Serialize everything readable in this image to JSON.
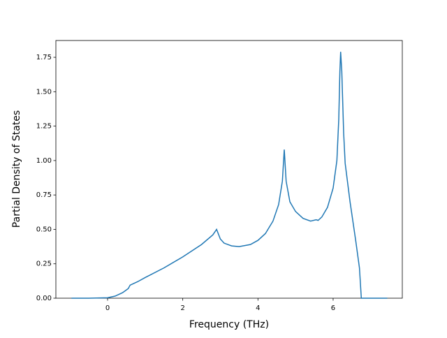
{
  "chart_data": {
    "type": "line",
    "xlabel": "Frequency (THz)",
    "ylabel": "Partial Density of States",
    "x": [
      -0.96,
      -0.5,
      0,
      0.2,
      0.4,
      0.55,
      0.6,
      0.8,
      1.0,
      1.5,
      2.0,
      2.5,
      2.8,
      2.9,
      3.0,
      3.1,
      3.3,
      3.5,
      3.8,
      4.0,
      4.2,
      4.4,
      4.55,
      4.65,
      4.7,
      4.75,
      4.85,
      5.0,
      5.2,
      5.4,
      5.55,
      5.6,
      5.7,
      5.85,
      6.0,
      6.1,
      6.15,
      6.18,
      6.2,
      6.23,
      6.28,
      6.32,
      6.45,
      6.6,
      6.7,
      6.75,
      7.0,
      7.44
    ],
    "series": [
      {
        "color": "#1f77b4",
        "values": [
          0,
          0,
          0.003,
          0.015,
          0.04,
          0.07,
          0.095,
          0.12,
          0.15,
          0.22,
          0.3,
          0.39,
          0.46,
          0.5,
          0.43,
          0.4,
          0.38,
          0.375,
          0.39,
          0.42,
          0.47,
          0.56,
          0.68,
          0.85,
          1.08,
          0.85,
          0.7,
          0.63,
          0.58,
          0.56,
          0.57,
          0.565,
          0.59,
          0.66,
          0.8,
          1.0,
          1.3,
          1.65,
          1.79,
          1.65,
          1.2,
          0.98,
          0.7,
          0.42,
          0.22,
          0,
          0,
          0
        ]
      }
    ],
    "xlim": [
      -1.375,
      7.84
    ],
    "ylim": [
      0,
      1.872
    ],
    "xticks": [
      0,
      2,
      4,
      6
    ],
    "yticks": [
      {
        "value": 0,
        "label": "0.00"
      },
      {
        "value": 0.25,
        "label": "0.25"
      },
      {
        "value": 0.5,
        "label": "0.50"
      },
      {
        "value": 0.75,
        "label": "0.75"
      },
      {
        "value": 1.0,
        "label": "1.00"
      },
      {
        "value": 1.25,
        "label": "1.25"
      },
      {
        "value": 1.5,
        "label": "1.50"
      },
      {
        "value": 1.75,
        "label": "1.75"
      }
    ]
  }
}
